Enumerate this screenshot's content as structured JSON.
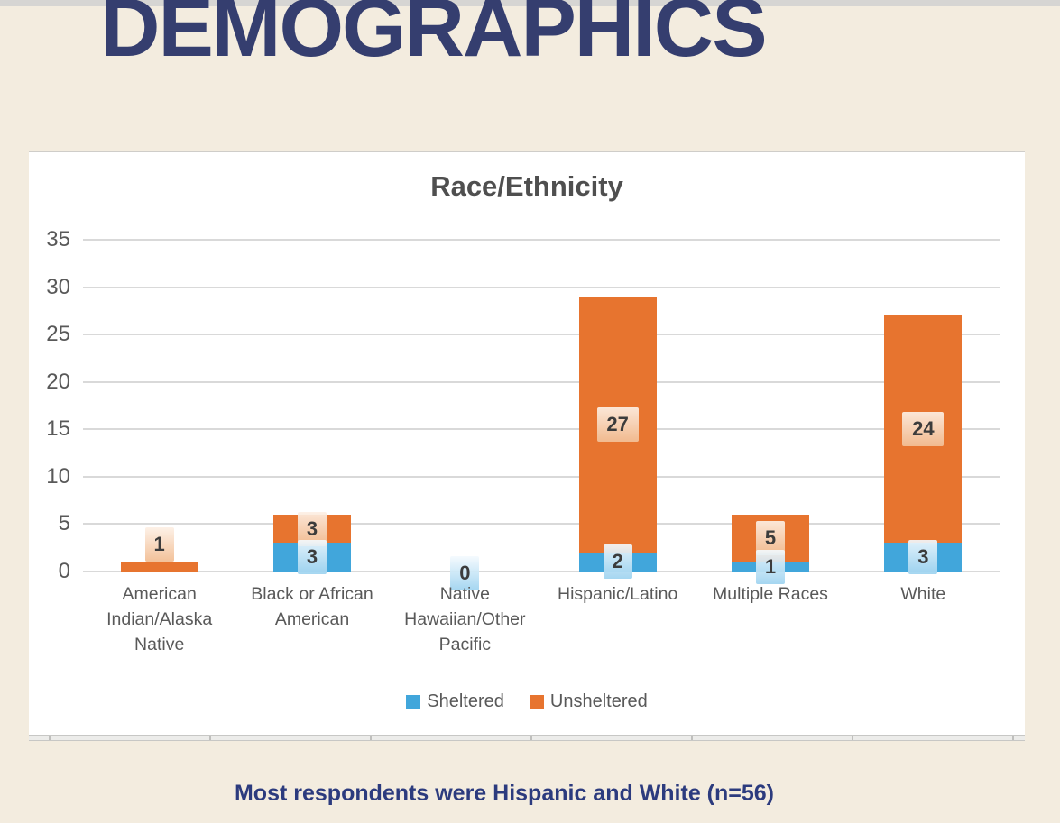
{
  "slide": {
    "title": "DEMOGRAPHICS",
    "title_color": "#353E6F",
    "background_color": "#F3ECDF"
  },
  "caption": {
    "text": "Most respondents were Hispanic and White (n=56)",
    "color": "#2C3B7E"
  },
  "chart_data": {
    "type": "bar",
    "stacked": true,
    "title": "Race/Ethnicity",
    "title_color": "#4F4F4F",
    "categories": [
      "American Indian/Alaska Native",
      "Black or African American",
      "Native Hawaiian/Other Pacific",
      "Hispanic/Latino",
      "Multiple Races",
      "White"
    ],
    "category_label_lines": [
      [
        "American",
        "Indian/Alaska",
        "Native"
      ],
      [
        "Black or African",
        "American"
      ],
      [
        "Native",
        "Hawaiian/Other",
        "Pacific"
      ],
      [
        "Hispanic/Latino"
      ],
      [
        "Multiple Races"
      ],
      [
        "White"
      ]
    ],
    "series": [
      {
        "name": "Sheltered",
        "color": "#41A6DB",
        "values": [
          null,
          3,
          0,
          2,
          1,
          3
        ]
      },
      {
        "name": "Unsheltered",
        "color": "#E7742F",
        "values": [
          1,
          3,
          null,
          27,
          5,
          24
        ]
      }
    ],
    "totals": [
      1,
      6,
      0,
      29,
      6,
      27
    ],
    "ylim": [
      0,
      35
    ],
    "yticks": [
      0,
      5,
      10,
      15,
      20,
      25,
      30,
      35
    ],
    "grid": true,
    "gridline_color": "#D9D9D9",
    "axis_text_color": "#595959",
    "legend_position": "bottom",
    "legend_labels": [
      "Sheltered",
      "Unsheltered"
    ]
  }
}
